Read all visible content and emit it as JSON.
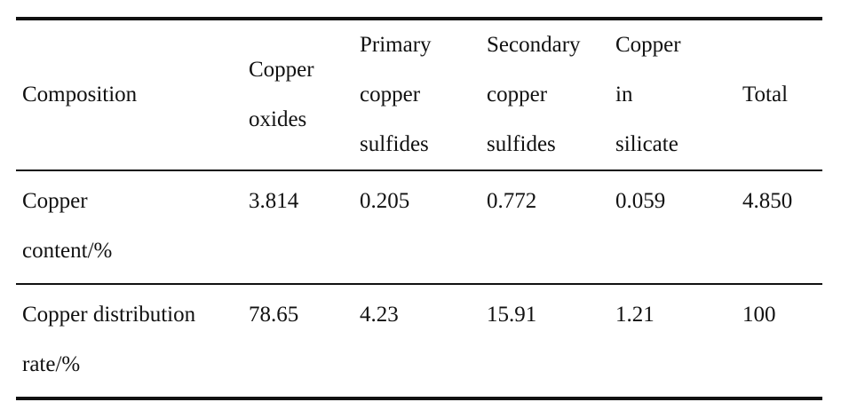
{
  "table": {
    "header": [
      "Composition",
      "Copper oxides",
      "Primary copper sulfides",
      "Secondary copper sulfides",
      "Copper in silicate",
      "Total"
    ],
    "rows": [
      [
        "Copper content/%",
        "3.814",
        "0.205",
        "0.772",
        "0.059",
        "4.850"
      ],
      [
        "Copper distribution rate/%",
        "78.65",
        "4.23",
        "15.91",
        "1.21",
        "100"
      ]
    ]
  }
}
